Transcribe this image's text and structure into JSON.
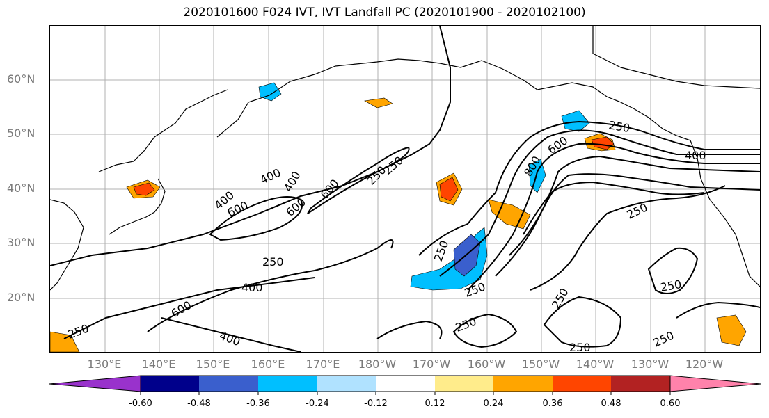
{
  "title": "2020101600 F024 IVT, IVT Landfall PC (2020101900 - 2020102100)",
  "lat_labels": [
    "60°N",
    "50°N",
    "40°N",
    "30°N",
    "20°N"
  ],
  "lon_labels": [
    "130°E",
    "140°E",
    "150°E",
    "160°E",
    "170°E",
    "180°W",
    "170°W",
    "160°W",
    "150°W",
    "140°W",
    "130°W",
    "120°W"
  ],
  "contour_labels": [
    "250",
    "400",
    "600",
    "250",
    "400",
    "600",
    "400",
    "600",
    "250",
    "250",
    "400",
    "600",
    "250",
    "400",
    "800",
    "600",
    "250",
    "400",
    "250",
    "250",
    "250",
    "250",
    "250",
    "250",
    "250"
  ],
  "colorbar": {
    "colors": [
      "#9932CC",
      "#00008B",
      "#3A5FCD",
      "#00BFFF",
      "#B0E2FF",
      "#FFFFFF",
      "#FFEC8B",
      "#FFA500",
      "#FF4500",
      "#B22222",
      "#FF82AB"
    ],
    "tick_labels": [
      "-0.60",
      "-0.48",
      "-0.36",
      "-0.24",
      "-0.12",
      "0.12",
      "0.24",
      "0.36",
      "0.48",
      "0.60"
    ]
  }
}
